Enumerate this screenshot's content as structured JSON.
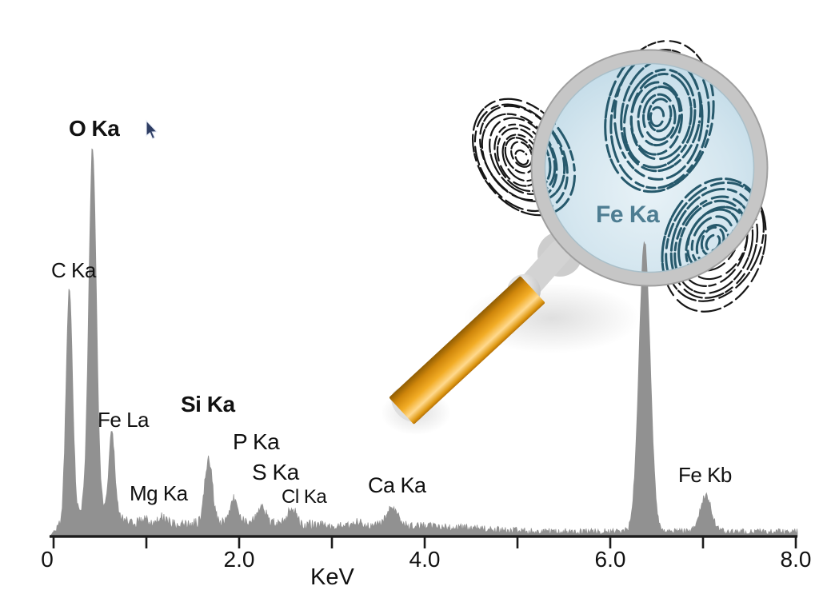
{
  "chart_data": {
    "type": "area",
    "description": "Energy-dispersive X-ray emission spectrum of fingerprint residue, shown with a magnifying glass examining fingerprints",
    "xlabel": "KeV",
    "xlim": [
      0,
      8
    ],
    "ylim_relative": [
      0,
      1.05
    ],
    "grid": false,
    "series_color": "#919191",
    "axis_color": "#1b1b1b",
    "x_axis": {
      "ticks_kev": [
        0,
        1,
        2,
        3,
        4,
        5,
        6,
        7,
        8
      ],
      "tick_labels": [
        {
          "kev": 0,
          "label": "0"
        },
        {
          "kev": 2,
          "label": "2.0"
        },
        {
          "kev": 4,
          "label": "4.0"
        },
        {
          "kev": 6,
          "label": "6.0"
        },
        {
          "kev": 8,
          "label": "8.0"
        }
      ]
    },
    "peaks": [
      {
        "label": "C Ka",
        "kev": 0.17,
        "rel_height": 0.6,
        "sigma_kev": 0.035,
        "bold": false
      },
      {
        "label": "O Ka",
        "kev": 0.42,
        "rel_height": 0.925,
        "sigma_kev": 0.04,
        "bold": true
      },
      {
        "label": "Fe La",
        "kev": 0.63,
        "rel_height": 0.21,
        "sigma_kev": 0.03,
        "bold": false
      },
      {
        "label": "Mg Ka",
        "kev": 1.17,
        "rel_height": 0.022,
        "sigma_kev": 0.05,
        "bold": false
      },
      {
        "label": "Si Ka",
        "kev": 1.67,
        "rel_height": 0.165,
        "sigma_kev": 0.042,
        "bold": true
      },
      {
        "label": "P Ka",
        "kev": 1.95,
        "rel_height": 0.062,
        "sigma_kev": 0.045,
        "bold": false
      },
      {
        "label": "S Ka",
        "kev": 2.24,
        "rel_height": 0.042,
        "sigma_kev": 0.05,
        "bold": false
      },
      {
        "label": "Cl Ka",
        "kev": 2.57,
        "rel_height": 0.038,
        "sigma_kev": 0.05,
        "bold": false
      },
      {
        "label": "Ca Ka",
        "kev": 3.65,
        "rel_height": 0.048,
        "sigma_kev": 0.062,
        "bold": false
      },
      {
        "label": "Fe Ka",
        "kev": 6.37,
        "rel_height": 0.75,
        "sigma_kev": 0.06,
        "bold": true
      },
      {
        "label": "Fe Kb",
        "kev": 7.03,
        "rel_height": 0.094,
        "sigma_kev": 0.06,
        "bold": false
      }
    ],
    "minor_peaks": [
      {
        "kev": 0.97,
        "rel_height": 0.014,
        "sigma_kev": 0.05
      },
      {
        "kev": 3.28,
        "rel_height": 0.012,
        "sigma_kev": 0.05
      }
    ],
    "continuum": [
      {
        "kev": 0.45,
        "amp": 0.06,
        "sigma": 0.19
      },
      {
        "kev": 2.0,
        "amp": 0.012,
        "sigma": 1.0
      },
      {
        "kev": 4.15,
        "amp": 0.008,
        "sigma": 0.45
      }
    ],
    "noise": {
      "base": 0.013,
      "bumps": [
        {
          "kev": 1.5,
          "amp": 0.01,
          "sigma": 1.2
        },
        {
          "kev": 3.6,
          "amp": 0.004,
          "sigma": 0.8
        }
      ],
      "seed": 20240917
    }
  },
  "magnifier": {
    "lens_tint": "#d4e6ef",
    "rim_color": "#c6c6c6",
    "handle_color": "#e8980f",
    "fingerprint_color_outside": "#161616",
    "fingerprint_color_inside": "#26596c",
    "lens_label_color": "#4e7d92"
  }
}
